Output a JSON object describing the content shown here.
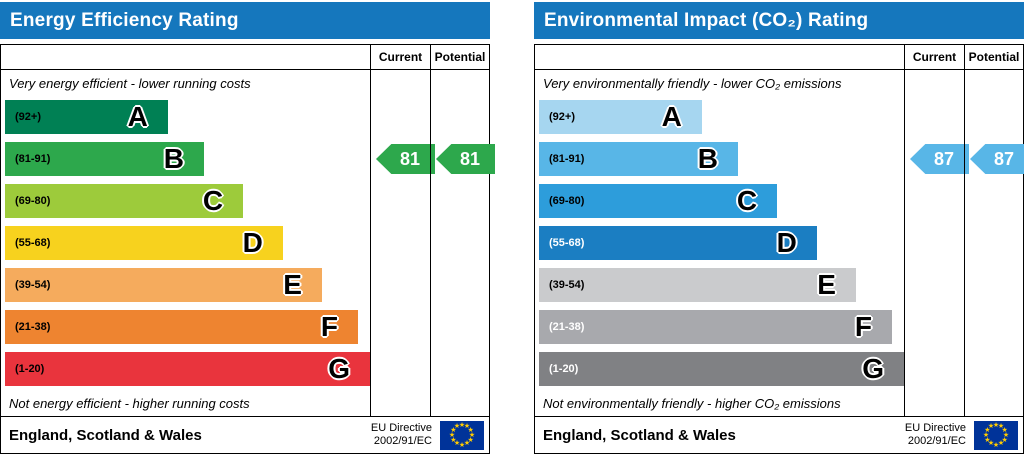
{
  "colors": {
    "header_blue": "#1577bd",
    "eu_flag_bg": "#003399",
    "eu_flag_stars": "#ffcc00"
  },
  "charts": [
    {
      "title": "Energy Efficiency Rating",
      "header_color": "#1577bd",
      "columns": {
        "current": "Current",
        "potential": "Potential"
      },
      "top_note": "Very energy efficient - lower running costs",
      "bottom_note": "Not energy efficient - higher running costs",
      "bands": [
        {
          "range": "(92+)",
          "letter": "A",
          "color": "#008054",
          "width_pct": 36.4
        },
        {
          "range": "(81-91)",
          "letter": "B",
          "color": "#2da84c",
          "width_pct": 46.3
        },
        {
          "range": "(69-80)",
          "letter": "C",
          "color": "#9dcb3b",
          "width_pct": 57.0
        },
        {
          "range": "(55-68)",
          "letter": "D",
          "color": "#f7d21e",
          "width_pct": 67.9
        },
        {
          "range": "(39-54)",
          "letter": "E",
          "color": "#f5ab5d",
          "width_pct": 78.6
        },
        {
          "range": "(21-38)",
          "letter": "F",
          "color": "#ee8430",
          "width_pct": 88.5
        },
        {
          "range": "(1-20)",
          "letter": "G",
          "color": "#e9343d",
          "width_pct": 98.9
        }
      ],
      "current": {
        "label": "81",
        "value": 81,
        "band_index": 1,
        "color": "#2da84c"
      },
      "potential": {
        "label": "81",
        "value": 81,
        "band_index": 1,
        "color": "#2da84c"
      },
      "footer": {
        "region": "England, Scotland & Wales",
        "directive_line1": "EU Directive",
        "directive_line2": "2002/91/EC"
      }
    },
    {
      "title": "Environmental Impact (CO₂) Rating",
      "header_color": "#1577bd",
      "columns": {
        "current": "Current",
        "potential": "Potential"
      },
      "top_note": "Very environmentally friendly - lower CO₂ emissions",
      "bottom_note": "Not environmentally friendly - higher CO₂ emissions",
      "bands": [
        {
          "range": "(92+)",
          "letter": "A",
          "color": "#a6d6f0",
          "width_pct": 36.4
        },
        {
          "range": "(81-91)",
          "letter": "B",
          "color": "#58b6e7",
          "width_pct": 46.3
        },
        {
          "range": "(69-80)",
          "letter": "C",
          "color": "#2d9ddb",
          "width_pct": 57.0
        },
        {
          "range": "(55-68)",
          "letter": "D",
          "color": "#1b7ec2",
          "width_pct": 67.9,
          "range_color": "#ffffff"
        },
        {
          "range": "(39-54)",
          "letter": "E",
          "color": "#cacbcd",
          "width_pct": 78.6
        },
        {
          "range": "(21-38)",
          "letter": "F",
          "color": "#a8a9ad",
          "width_pct": 88.5,
          "range_color": "#ffffff"
        },
        {
          "range": "(1-20)",
          "letter": "G",
          "color": "#808184",
          "width_pct": 98.9,
          "range_color": "#ffffff"
        }
      ],
      "current": {
        "label": "87",
        "value": 87,
        "band_index": 1,
        "color": "#58b6e7"
      },
      "potential": {
        "label": "87",
        "value": 87,
        "band_index": 1,
        "color": "#58b6e7"
      },
      "footer": {
        "region": "England, Scotland & Wales",
        "directive_line1": "EU Directive",
        "directive_line2": "2002/91/EC"
      }
    }
  ],
  "chart_data": [
    {
      "type": "bar",
      "orientation": "horizontal",
      "title": "Energy Efficiency Rating",
      "categories": [
        "A",
        "B",
        "C",
        "D",
        "E",
        "F",
        "G"
      ],
      "category_ranges": [
        "92+",
        "81-91",
        "69-80",
        "55-68",
        "39-54",
        "21-38",
        "1-20"
      ],
      "bar_lengths_pct": [
        36.4,
        46.3,
        57.0,
        67.9,
        78.6,
        88.5,
        98.9
      ],
      "series": [
        {
          "name": "Current",
          "value": 81,
          "band": "B"
        },
        {
          "name": "Potential",
          "value": 81,
          "band": "B"
        }
      ],
      "annotations": [
        "Very energy efficient - lower running costs",
        "Not energy efficient - higher running costs",
        "England, Scotland & Wales",
        "EU Directive 2002/91/EC"
      ]
    },
    {
      "type": "bar",
      "orientation": "horizontal",
      "title": "Environmental Impact (CO₂) Rating",
      "categories": [
        "A",
        "B",
        "C",
        "D",
        "E",
        "F",
        "G"
      ],
      "category_ranges": [
        "92+",
        "81-91",
        "69-80",
        "55-68",
        "39-54",
        "21-38",
        "1-20"
      ],
      "bar_lengths_pct": [
        36.4,
        46.3,
        57.0,
        67.9,
        78.6,
        88.5,
        98.9
      ],
      "series": [
        {
          "name": "Current",
          "value": 87,
          "band": "B"
        },
        {
          "name": "Potential",
          "value": 87,
          "band": "B"
        }
      ],
      "annotations": [
        "Very environmentally friendly - lower CO₂ emissions",
        "Not environmentally friendly - higher CO₂ emissions",
        "England, Scotland & Wales",
        "EU Directive 2002/91/EC"
      ]
    }
  ]
}
